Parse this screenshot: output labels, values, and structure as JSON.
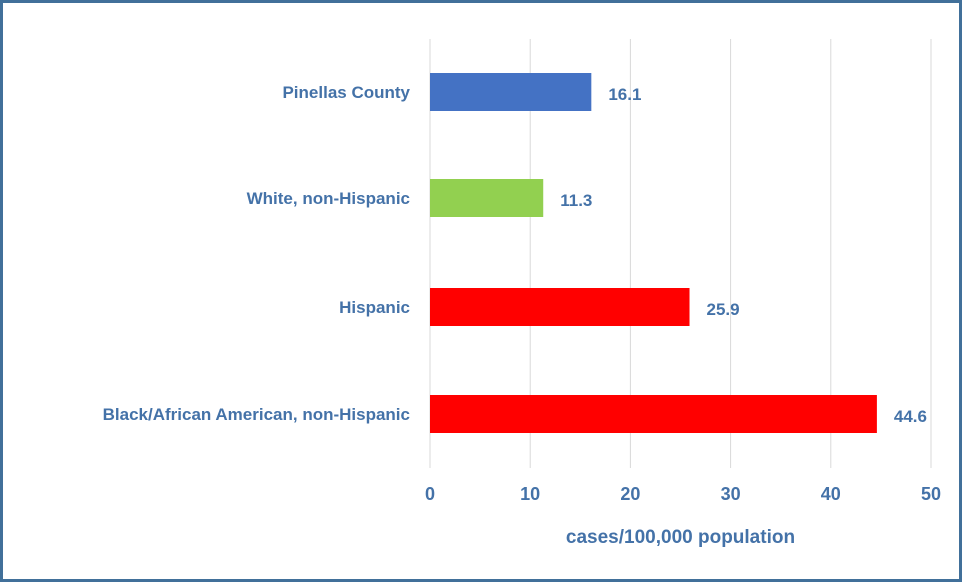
{
  "chart_data": {
    "type": "bar",
    "orientation": "horizontal",
    "categories": [
      "Pinellas County",
      "White, non-Hispanic",
      "Hispanic",
      "Black/African American, non-Hispanic"
    ],
    "values": [
      16.1,
      11.3,
      25.9,
      44.6
    ],
    "value_labels": [
      "16.1",
      "11.3",
      "25.9",
      "44.6"
    ],
    "bar_colors": [
      "#4472c4",
      "#92d050",
      "#ff0000",
      "#ff0000"
    ],
    "xlabel": "cases/100,000 population",
    "ylabel": "",
    "title": "",
    "xlim": [
      0,
      50
    ],
    "xticks": [
      0,
      10,
      20,
      30,
      40,
      50
    ],
    "grid": "vertical",
    "legend": "none",
    "colors": {
      "text": "#4472a8",
      "border": "#41709a",
      "grid": "#d9d9d9"
    }
  }
}
